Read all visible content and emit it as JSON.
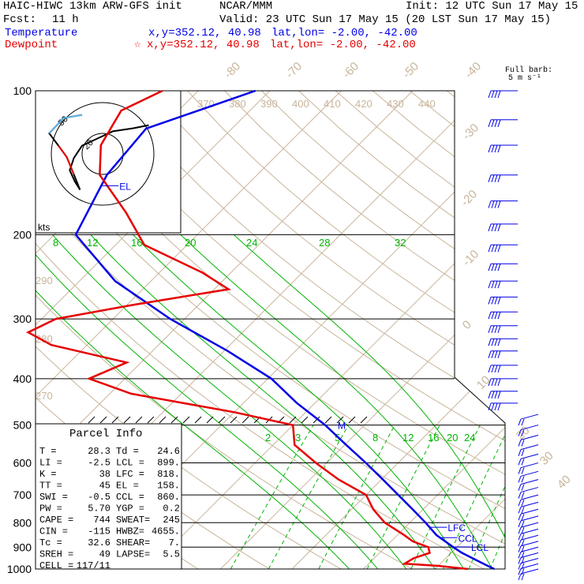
{
  "header": {
    "model": "HAIC-HIWC 13km ARW-GFS init",
    "org": "NCAR/MMM",
    "init": "Init: 12 UTC Sun 17 May 15",
    "fcst_label": "Fcst:",
    "fcst_value": "11 h",
    "valid": "Valid: 23 UTC Sun 17 May 15 (20 LST Sun 17 May 15)",
    "temp_label": "Temperature",
    "temp_xy": "x,y=352.12, 40.98",
    "temp_latlon": "lat,lon= -2.00, -42.00",
    "dew_label": "Dewpoint",
    "dew_star": "☆",
    "dew_xy": "x,y=352.12, 40.98",
    "dew_latlon": "lat,lon= -2.00, -42.00",
    "barb_note_1": "Full barb:",
    "barb_note_2": "5 m s⁻¹"
  },
  "colors": {
    "temperature": "#0000e6",
    "dewpoint": "#e60000",
    "isotherm": "#c8b49a",
    "dry_adiabat": "#c8b49a",
    "moist_adiabat": "#00b400",
    "mixing_ratio": "#00b400",
    "isobar": "#000000",
    "hodograph": "#000000",
    "hodo_low": "#5ab4e6",
    "wind_barb": "#0000e6"
  },
  "chart_data": {
    "type": "line",
    "subtype": "skew-t log-p",
    "y_scale": "log-pressure",
    "pressure_range": [
      1000,
      100
    ],
    "pressure_ticks": [
      100,
      200,
      300,
      400,
      500,
      600,
      700,
      800,
      900,
      1000
    ],
    "isotherm_labels_top": [
      "-80",
      "-70",
      "-60",
      "-50",
      "-40"
    ],
    "isotherm_labels_right": [
      "-30",
      "-20",
      "-10",
      "0",
      "10",
      "20",
      "30",
      "40"
    ],
    "theta_labels_top": [
      "370",
      "380",
      "390",
      "400",
      "410",
      "420",
      "430",
      "440"
    ],
    "theta_labels_left": [
      "290",
      "280",
      "270"
    ],
    "moist_labels": [
      "8",
      "12",
      "16",
      "20",
      "24",
      "28",
      "32"
    ],
    "mixing_labels": [
      "2",
      "3",
      "5",
      "8",
      "12",
      "16",
      "20",
      "24"
    ],
    "temperature": {
      "name": "Temperature",
      "p": [
        1000,
        980,
        950,
        925,
        900,
        850,
        800,
        750,
        700,
        650,
        600,
        550,
        500,
        450,
        400,
        350,
        300,
        250,
        200,
        150,
        120,
        100
      ],
      "t": [
        28.3,
        26.5,
        23.8,
        21.5,
        19.5,
        15.5,
        12.2,
        8.5,
        4.5,
        0.2,
        -4.5,
        -9.8,
        -15.5,
        -22.5,
        -29.5,
        -39.5,
        -52.0,
        -65.0,
        -77.0,
        -81.0,
        -82.0,
        -72.0
      ]
    },
    "dewpoint": {
      "name": "Dewpoint",
      "p": [
        1000,
        985,
        975,
        950,
        925,
        900,
        875,
        850,
        800,
        750,
        700,
        650,
        600,
        550,
        500,
        470,
        430,
        400,
        370,
        340,
        320,
        300,
        280,
        260,
        240,
        210,
        180,
        150,
        130,
        110,
        100
      ],
      "td": [
        24.6,
        20.0,
        15.0,
        15.5,
        17.0,
        16.0,
        13.0,
        11.0,
        6.5,
        3.0,
        0.0,
        -6.0,
        -11.5,
        -17.0,
        -20.0,
        -30.0,
        -47.0,
        -55.0,
        -52.0,
        -65.0,
        -70.0,
        -68.0,
        -59.0,
        -48.0,
        -54.0,
        -66.0,
        -73.0,
        -82.0,
        -86.0,
        -88.0,
        -85.0
      ]
    },
    "levels": {
      "EL": 158,
      "LFC": 818,
      "CCL": 860,
      "LCL": 899,
      "M": 500
    },
    "level_labels": {
      "EL": "EL",
      "LFC": "LFC",
      "CCL": "CCL",
      "LCL": "LCL",
      "M": "M"
    },
    "wind_barbs_p": [
      100,
      115,
      130,
      150,
      170,
      190,
      210,
      230,
      250,
      270,
      290,
      310,
      330,
      350,
      375,
      400,
      425,
      450,
      475,
      500,
      525,
      550,
      575,
      600,
      625,
      650,
      675,
      700,
      725,
      750,
      775,
      800,
      825,
      850,
      875,
      900,
      925,
      950,
      975,
      1000
    ],
    "hodograph": {
      "axis_label": "kts",
      "ring_labels": [
        "50",
        "20"
      ],
      "u": [
        45,
        30,
        10,
        -5,
        -20,
        -28,
        -32,
        -27,
        -22,
        -28,
        -35,
        -43,
        -52,
        -38,
        -20
      ],
      "v": [
        28,
        25,
        22,
        15,
        8,
        -4,
        -16,
        -27,
        -35,
        -20,
        -3,
        8,
        20,
        35,
        38
      ]
    }
  },
  "parcel_info": {
    "title": "Parcel Info",
    "rows": [
      [
        "T  =",
        "28.3",
        "Td =",
        "24.6"
      ],
      [
        "LI =",
        "-2.5",
        "LCL =",
        "899."
      ],
      [
        "K  =",
        "38",
        "LFC =",
        "818."
      ],
      [
        "TT =",
        "45",
        "EL  =",
        "158."
      ],
      [
        "SWI =",
        "-0.5",
        "CCL =",
        "860."
      ],
      [
        "PW =",
        "5.70",
        "YGP =",
        "0.2"
      ],
      [
        "CAPE =",
        "744",
        "SWEAT=",
        "245"
      ],
      [
        "CIN =",
        "-115",
        "HWBZ=",
        "4655."
      ],
      [
        "Tc =",
        "32.6",
        "SHEAR=",
        "7."
      ],
      [
        "SREH =",
        "49",
        "LAPSE=",
        "5.5"
      ],
      [
        "CELL =",
        "117/11",
        "",
        ""
      ]
    ]
  }
}
